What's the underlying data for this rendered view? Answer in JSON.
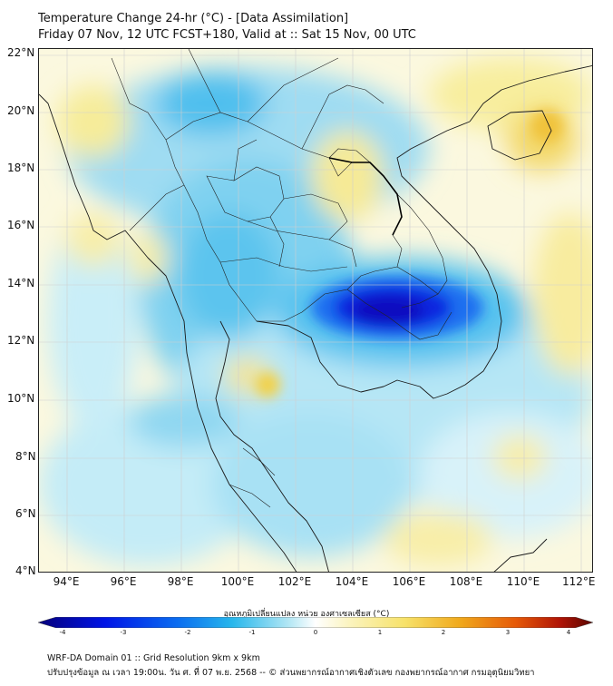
{
  "header": {
    "title_line1": "Temperature Change 24-hr (°C) - [Data Assimilation]",
    "title_line2": "Friday 07 Nov, 12 UTC FCST+180, Valid at :: Sat 15 Nov, 00 UTC"
  },
  "map": {
    "lat_labels": [
      "22°N",
      "20°N",
      "18°N",
      "16°N",
      "14°N",
      "12°N",
      "10°N",
      "8°N",
      "6°N",
      "4°N"
    ],
    "lon_labels": [
      "94°E",
      "96°E",
      "98°E",
      "100°E",
      "102°E",
      "104°E",
      "106°E",
      "108°E",
      "110°E",
      "112°E"
    ]
  },
  "colorbar": {
    "title": "อุณหภูมิเปลี่ยนแปลง หน่วย องศาเซลเซียส (°C)",
    "tick_labels": [
      "-4",
      "-3",
      "-2",
      "-1",
      "0",
      "1",
      "2",
      "3",
      "4"
    ],
    "colors": [
      "#06007a",
      "#0014e6",
      "#0a6cf0",
      "#27b7ec",
      "#b0e6f4",
      "#ffffff",
      "#fbf4c0",
      "#f7e26a",
      "#f0a91c",
      "#e65a08",
      "#b01406",
      "#5a0600"
    ]
  },
  "footer": {
    "line1": "WRF-DA Domain 01 :: Grid Resolution 9km x 9km",
    "line2": "ปรับปรุงข้อมูล ณ เวลา 19:00น. วัน ศ. ที่ 07 พ.ย. 2568 -- © ส่วนพยากรณ์อากาศเชิงตัวเลข กองพยากรณ์อากาศ กรมอุตุนิยมวิทยา"
  }
}
